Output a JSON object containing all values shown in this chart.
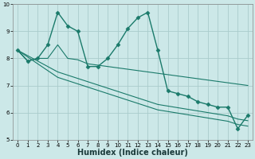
{
  "xlabel": "Humidex (Indice chaleur)",
  "bg_color": "#cce8e8",
  "grid_color": "#aacccc",
  "line_color": "#1a7a6a",
  "xmin": -0.5,
  "xmax": 23.5,
  "ymin": 5,
  "ymax": 10,
  "yticks": [
    5,
    6,
    7,
    8,
    9,
    10
  ],
  "xtick_labels": [
    "0",
    "1",
    "2",
    "3",
    "4",
    "5",
    "6",
    "7",
    "8",
    "9",
    "10",
    "11",
    "12",
    "13",
    "14",
    "15",
    "16",
    "17",
    "18",
    "19",
    "20",
    "21",
    "22",
    "23"
  ],
  "series": [
    [
      8.3,
      7.9,
      8.0,
      8.5,
      9.7,
      9.2,
      9.0,
      7.7,
      7.7,
      8.0,
      8.5,
      9.1,
      9.5,
      9.7,
      8.3,
      6.8,
      6.7,
      6.6,
      6.4,
      6.3,
      6.2,
      6.2,
      5.4,
      5.9
    ],
    [
      8.3,
      7.9,
      8.0,
      8.0,
      8.5,
      8.0,
      7.95,
      7.8,
      7.75,
      7.7,
      7.65,
      7.6,
      7.55,
      7.5,
      7.45,
      7.4,
      7.35,
      7.3,
      7.25,
      7.2,
      7.15,
      7.1,
      7.05,
      7.0
    ],
    [
      8.3,
      8.1,
      7.9,
      7.7,
      7.5,
      7.38,
      7.26,
      7.14,
      7.02,
      6.9,
      6.78,
      6.66,
      6.54,
      6.42,
      6.3,
      6.24,
      6.18,
      6.12,
      6.06,
      6.0,
      5.94,
      5.88,
      5.76,
      5.7
    ],
    [
      8.3,
      8.05,
      7.8,
      7.55,
      7.3,
      7.18,
      7.06,
      6.94,
      6.82,
      6.7,
      6.58,
      6.46,
      6.34,
      6.22,
      6.1,
      6.04,
      5.98,
      5.92,
      5.86,
      5.8,
      5.74,
      5.68,
      5.56,
      5.5
    ]
  ],
  "xlabel_fontsize": 7,
  "tick_fontsize": 5,
  "linewidth_main": 1.0,
  "linewidth_other": 0.8,
  "marker": "D",
  "markersize": 2.5
}
